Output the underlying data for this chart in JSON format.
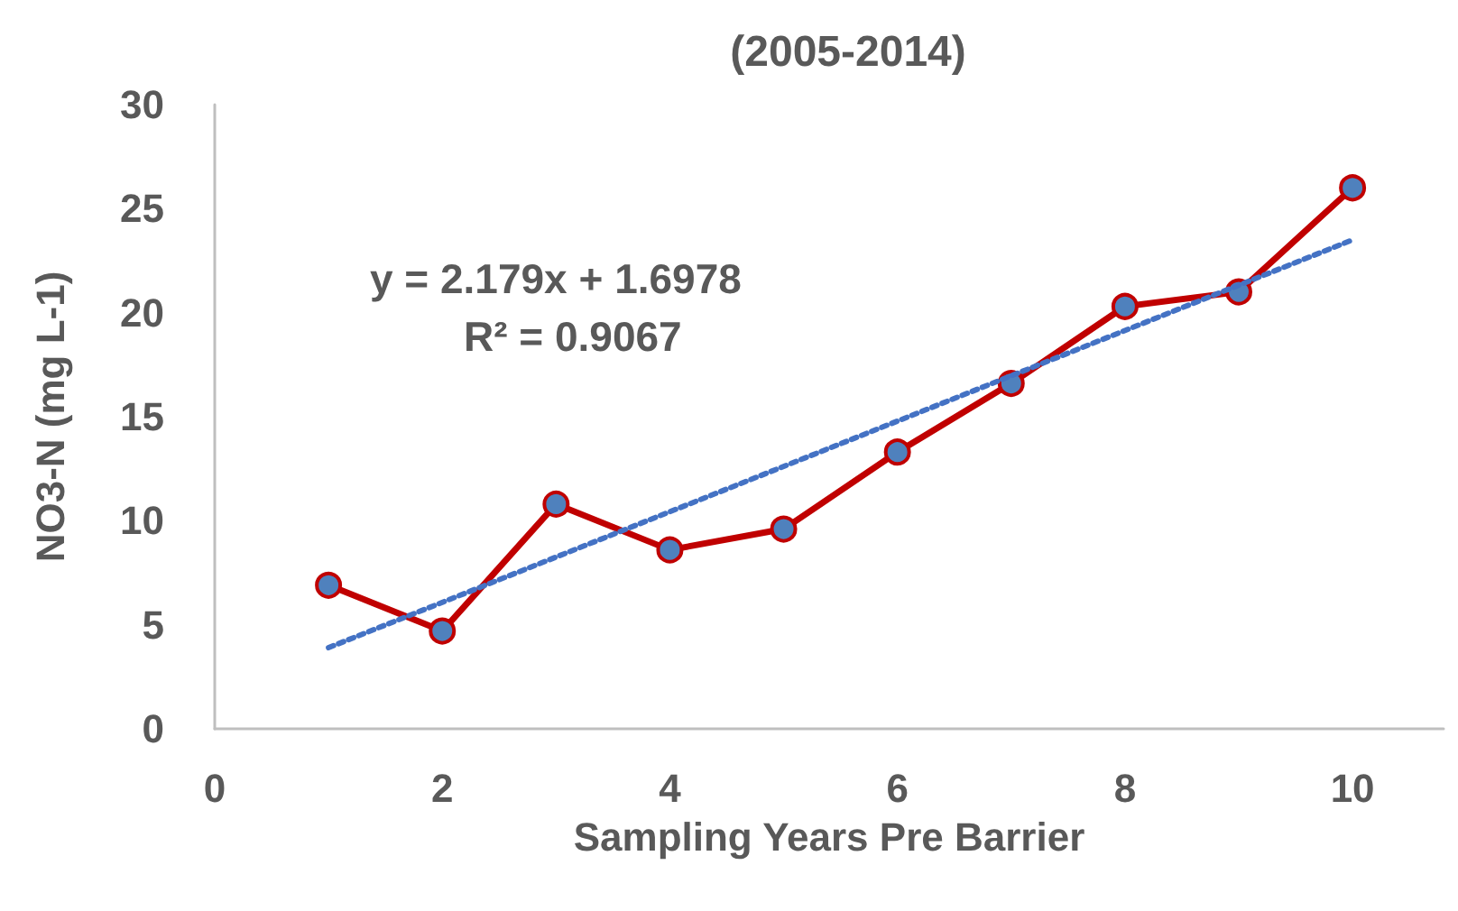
{
  "chart_data": {
    "type": "line",
    "title": "(2005-2014)",
    "xlabel": "Sampling Years Pre Barrier",
    "ylabel": "NO3-N (mg L-1)",
    "annotations": [
      "y = 2.179x + 1.6978",
      "R² = 0.9067"
    ],
    "x": [
      1,
      2,
      3,
      4,
      5,
      6,
      7,
      8,
      9,
      10
    ],
    "series": [
      {
        "color": "#c00000",
        "values": [
          6.9,
          4.7,
          10.8,
          8.6,
          9.6,
          13.3,
          16.6,
          20.3,
          21.0,
          26.0
        ],
        "marker": "circle",
        "line_style": "solid"
      },
      {
        "color": "#4472c4",
        "x": [
          1,
          10
        ],
        "values": [
          3.9,
          23.5
        ],
        "marker": "none",
        "line_style": "dotted"
      }
    ],
    "xlim": [
      0,
      10.8
    ],
    "xticks": [
      0,
      2,
      4,
      6,
      8,
      10
    ],
    "ylim": [
      0,
      30
    ],
    "yticks": [
      0,
      5,
      10,
      15,
      20,
      25,
      30
    ],
    "grid": false
  }
}
